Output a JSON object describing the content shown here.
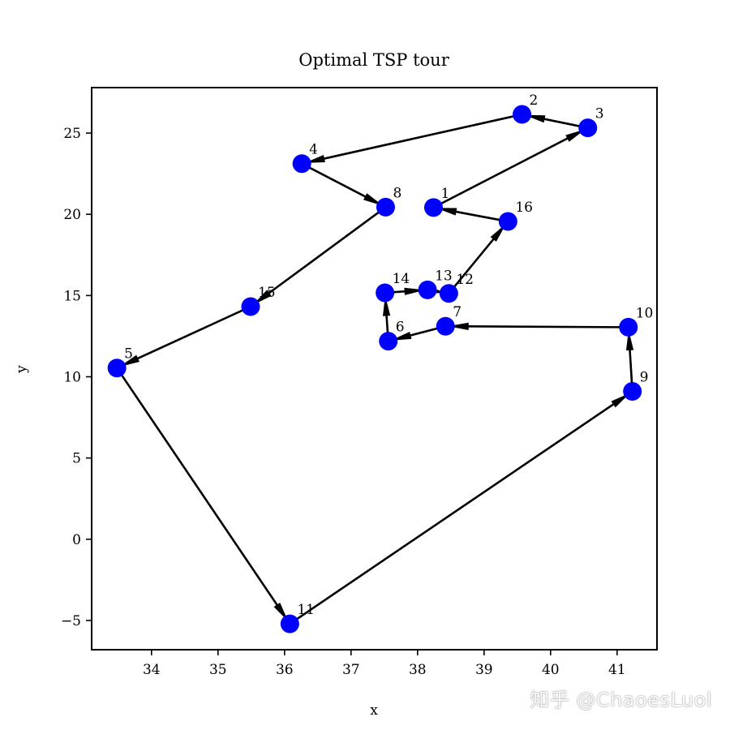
{
  "chart_data": {
    "type": "scatter",
    "title": "Optimal TSP tour",
    "xlabel": "x",
    "ylabel": "y",
    "xlim": [
      33.1,
      41.6
    ],
    "ylim": [
      -6.8,
      27.8
    ],
    "xticks": [
      34,
      35,
      36,
      37,
      38,
      39,
      40,
      41
    ],
    "yticks": [
      -5,
      0,
      5,
      10,
      15,
      20,
      25
    ],
    "grid": false,
    "points": [
      {
        "label": "1",
        "x": 38.24,
        "y": 20.42
      },
      {
        "label": "2",
        "x": 39.57,
        "y": 26.15
      },
      {
        "label": "3",
        "x": 40.56,
        "y": 25.32
      },
      {
        "label": "4",
        "x": 36.26,
        "y": 23.12
      },
      {
        "label": "5",
        "x": 33.48,
        "y": 10.54
      },
      {
        "label": "6",
        "x": 37.56,
        "y": 12.19
      },
      {
        "label": "7",
        "x": 38.42,
        "y": 13.11
      },
      {
        "label": "8",
        "x": 37.52,
        "y": 20.44
      },
      {
        "label": "9",
        "x": 41.23,
        "y": 9.1
      },
      {
        "label": "10",
        "x": 41.17,
        "y": 13.05
      },
      {
        "label": "11",
        "x": 36.08,
        "y": -5.21
      },
      {
        "label": "12",
        "x": 38.47,
        "y": 15.13
      },
      {
        "label": "13",
        "x": 38.15,
        "y": 15.35
      },
      {
        "label": "14",
        "x": 37.51,
        "y": 15.17
      },
      {
        "label": "15",
        "x": 35.49,
        "y": 14.32
      },
      {
        "label": "16",
        "x": 39.36,
        "y": 19.56
      }
    ],
    "tour": [
      "1",
      "3",
      "2",
      "4",
      "8",
      "15",
      "5",
      "11",
      "9",
      "10",
      "7",
      "6",
      "14",
      "13",
      "12",
      "16",
      "1"
    ],
    "point_color": "#0000ff",
    "line_color": "#000000",
    "arrow_color": "#000000"
  },
  "watermark": "知乎 @ChaoesLuol"
}
